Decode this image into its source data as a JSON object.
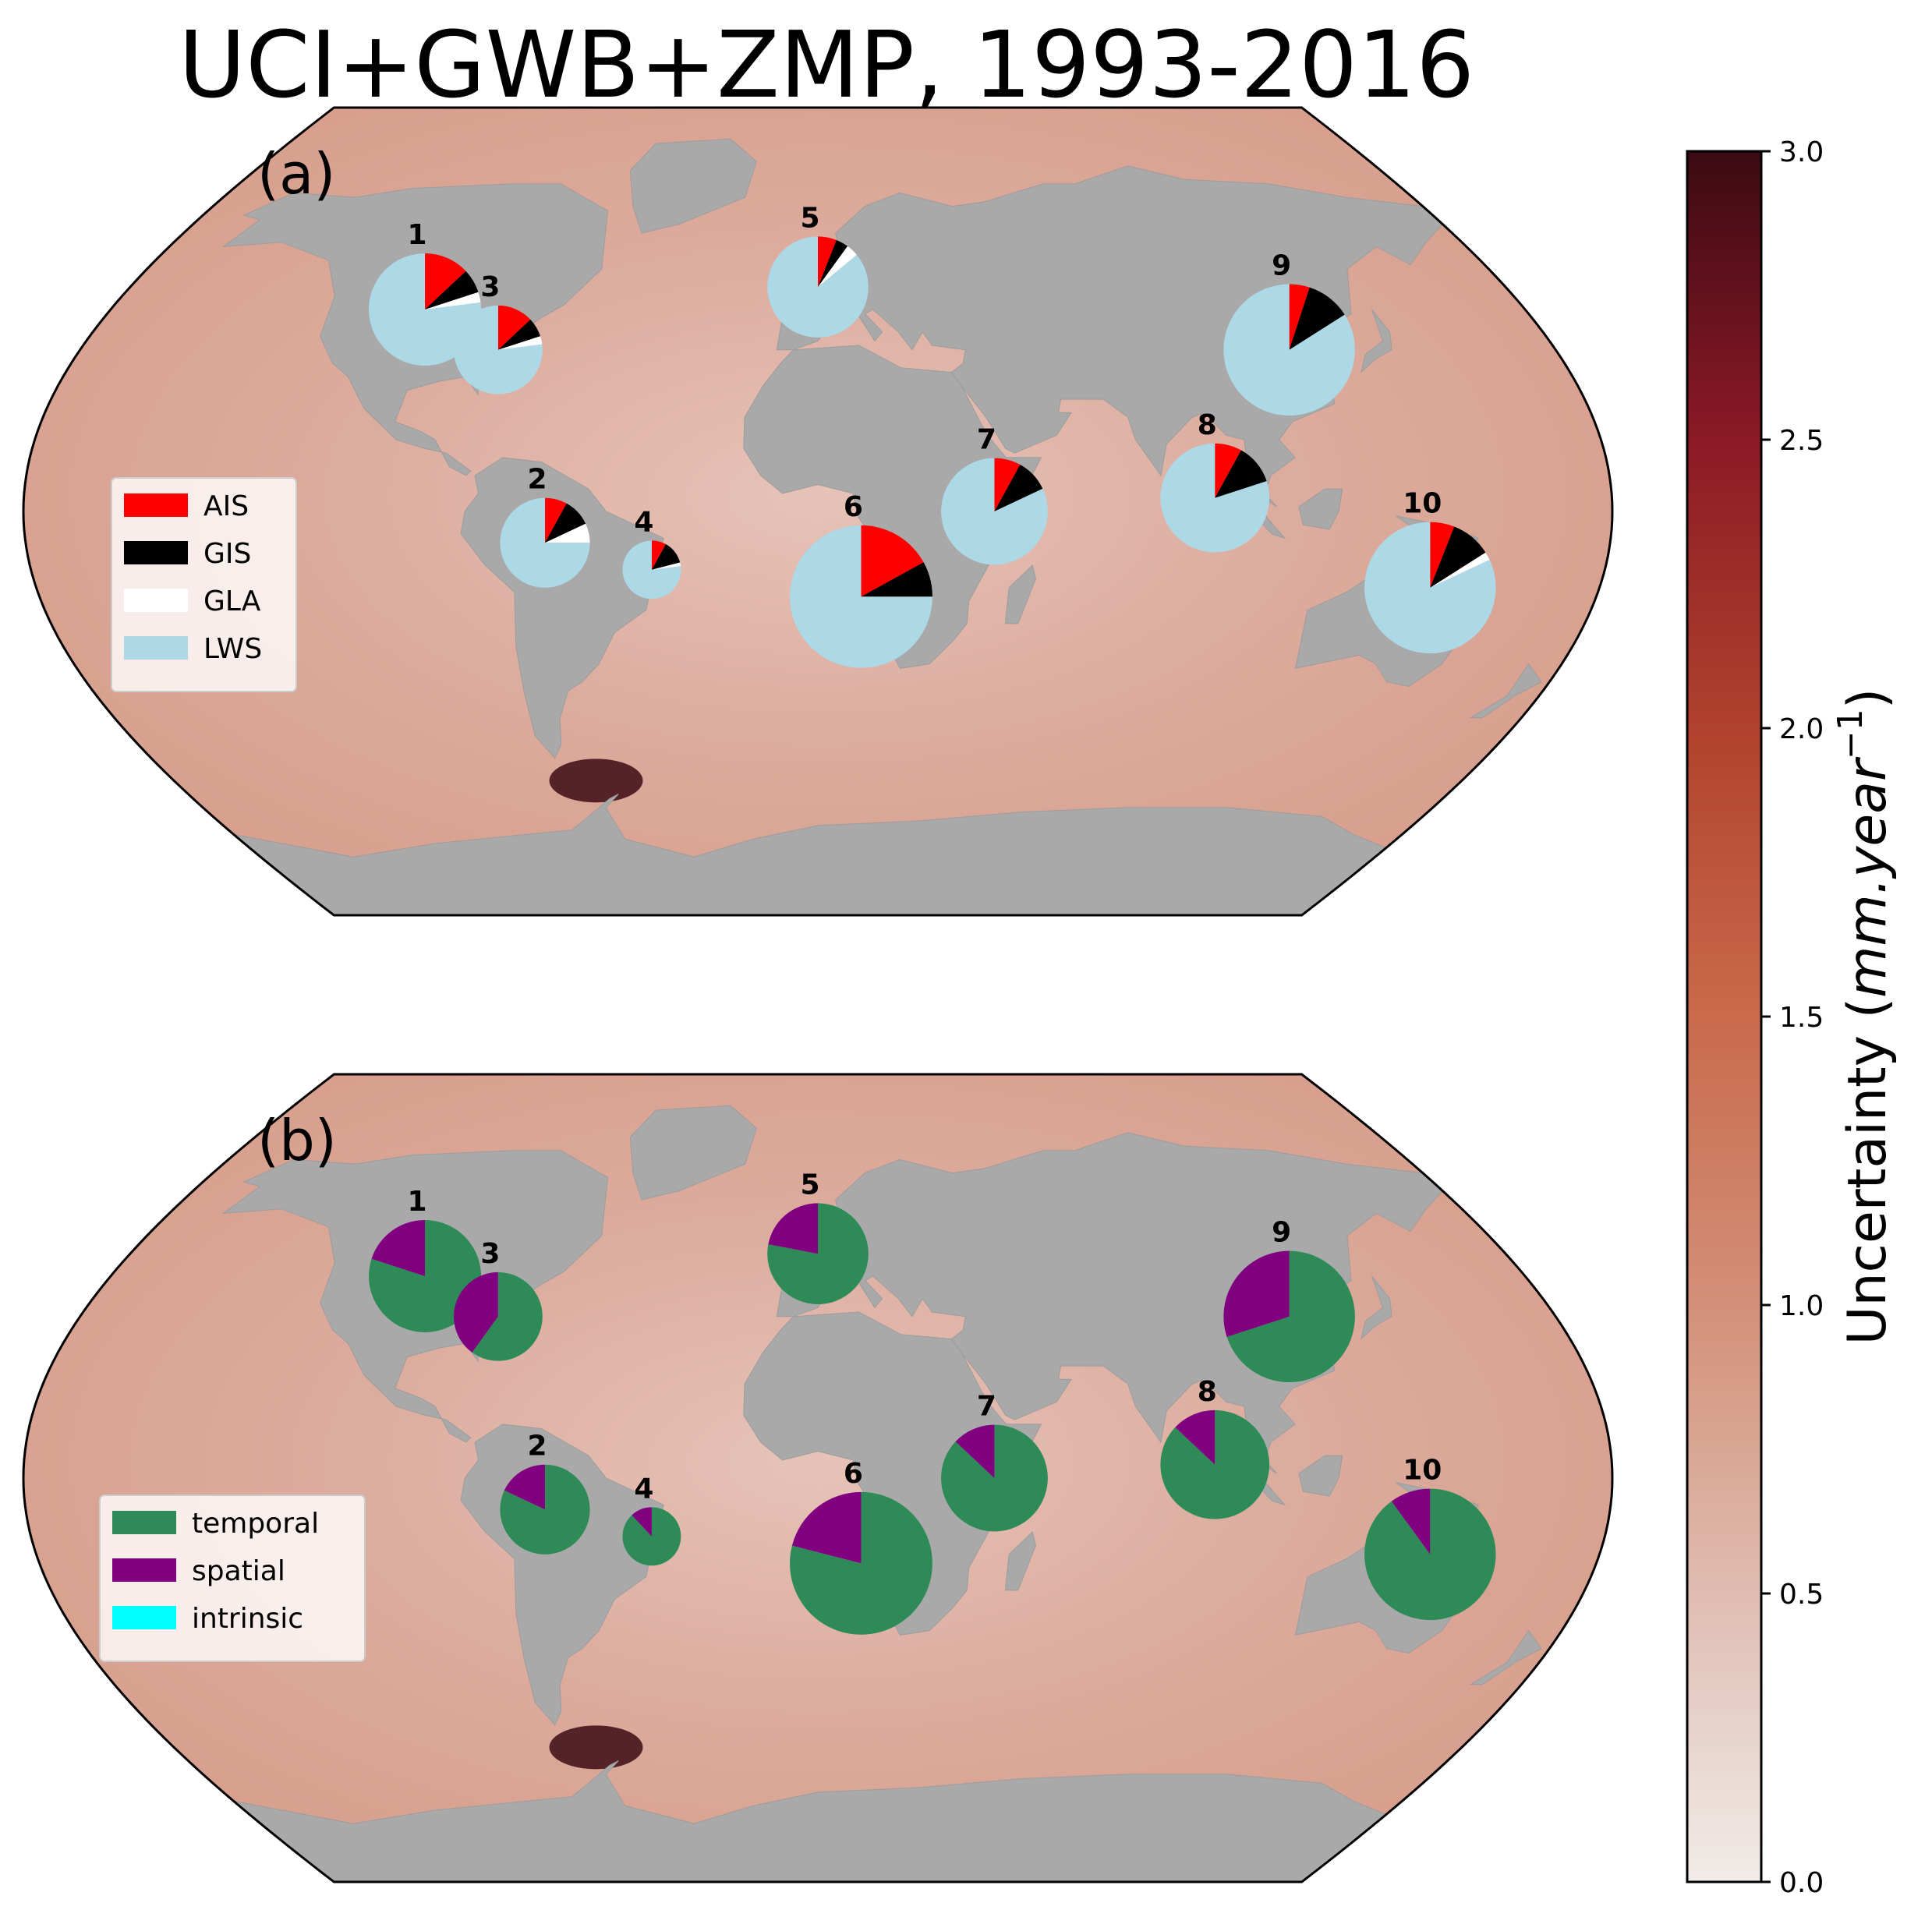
{
  "title": "UCI+GWB+ZMP, 1993-2016",
  "colors": {
    "land": "#a9a9a9",
    "ocean_base": "#dba99b",
    "AIS": "#ff0000",
    "GIS": "#000000",
    "GLA": "#ffffff",
    "LWS": "#add8e6",
    "temporal": "#2e8b57",
    "spatial": "#800080",
    "intrinsic": "#00ffff"
  },
  "colorbar": {
    "label": "Uncertainty (mm.year⁻¹)",
    "label_plain": "Uncertainty (",
    "label_italic": "mm.year",
    "label_sup": "−1",
    "label_close": ")",
    "min": 0.0,
    "max": 3.0,
    "ticks": [
      "0.0",
      "0.5",
      "1.0",
      "1.5",
      "2.0",
      "2.5",
      "3.0"
    ],
    "cmap": "amp"
  },
  "chart_data": [
    {
      "type": "pie",
      "panel_label": "(a)",
      "legend": [
        "AIS",
        "GIS",
        "GLA",
        "LWS"
      ],
      "legend_placement": "center-left",
      "sites": [
        {
          "id": "1",
          "lon": -100,
          "lat": 45,
          "size": 1.0,
          "values": [
            0.13,
            0.07,
            0.03,
            0.77
          ]
        },
        {
          "id": "2",
          "lon": -62,
          "lat": -7,
          "size": 0.8,
          "values": [
            0.08,
            0.1,
            0.07,
            0.75
          ]
        },
        {
          "id": "3",
          "lon": -78,
          "lat": 36,
          "size": 0.79,
          "values": [
            0.13,
            0.07,
            0.03,
            0.77
          ]
        },
        {
          "id": "4",
          "lon": -38,
          "lat": -13,
          "size": 0.52,
          "values": [
            0.08,
            0.13,
            0.02,
            0.77
          ]
        },
        {
          "id": "5",
          "lon": 0,
          "lat": 50,
          "size": 0.9,
          "values": [
            0.06,
            0.04,
            0.04,
            0.86
          ]
        },
        {
          "id": "6",
          "lon": 10,
          "lat": -19,
          "size": 1.27,
          "values": [
            0.17,
            0.08,
            0.0,
            0.75
          ]
        },
        {
          "id": "7",
          "lon": 40,
          "lat": 0,
          "size": 0.95,
          "values": [
            0.08,
            0.1,
            0.0,
            0.82
          ]
        },
        {
          "id": "8",
          "lon": 90,
          "lat": 3,
          "size": 0.97,
          "values": [
            0.08,
            0.12,
            0.0,
            0.8
          ]
        },
        {
          "id": "9",
          "lon": 115,
          "lat": 36,
          "size": 1.17,
          "values": [
            0.05,
            0.11,
            0.0,
            0.84
          ]
        },
        {
          "id": "10",
          "lon": 141,
          "lat": -17,
          "size": 1.17,
          "values": [
            0.06,
            0.1,
            0.02,
            0.82
          ]
        }
      ]
    },
    {
      "type": "pie",
      "panel_label": "(b)",
      "legend": [
        "temporal",
        "spatial",
        "intrinsic"
      ],
      "legend_placement": "lower-left",
      "sites": [
        {
          "id": "1",
          "lon": -100,
          "lat": 45,
          "size": 1.0,
          "values": [
            0.8,
            0.2,
            0.0
          ]
        },
        {
          "id": "2",
          "lon": -62,
          "lat": -7,
          "size": 0.8,
          "values": [
            0.82,
            0.18,
            0.0
          ]
        },
        {
          "id": "3",
          "lon": -78,
          "lat": 36,
          "size": 0.79,
          "values": [
            0.6,
            0.4,
            0.0
          ]
        },
        {
          "id": "4",
          "lon": -38,
          "lat": -13,
          "size": 0.52,
          "values": [
            0.88,
            0.12,
            0.0
          ]
        },
        {
          "id": "5",
          "lon": 0,
          "lat": 50,
          "size": 0.9,
          "values": [
            0.78,
            0.22,
            0.0
          ]
        },
        {
          "id": "6",
          "lon": 10,
          "lat": -19,
          "size": 1.27,
          "values": [
            0.79,
            0.21,
            0.0
          ]
        },
        {
          "id": "7",
          "lon": 40,
          "lat": 0,
          "size": 0.95,
          "values": [
            0.87,
            0.13,
            0.0
          ]
        },
        {
          "id": "8",
          "lon": 90,
          "lat": 3,
          "size": 0.97,
          "values": [
            0.87,
            0.13,
            0.0
          ]
        },
        {
          "id": "9",
          "lon": 115,
          "lat": 36,
          "size": 1.17,
          "values": [
            0.7,
            0.3,
            0.0
          ]
        },
        {
          "id": "10",
          "lon": 141,
          "lat": -17,
          "size": 1.17,
          "values": [
            0.9,
            0.1,
            0.0
          ]
        }
      ]
    }
  ]
}
